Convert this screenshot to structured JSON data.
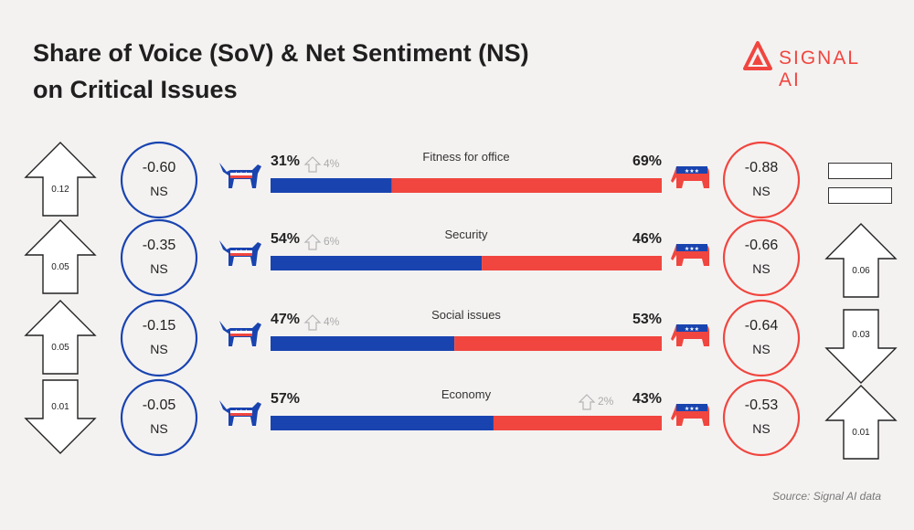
{
  "title_line1": "Share of Voice (SoV) & Net Sentiment (NS)",
  "title_line2": "on Critical Issues",
  "brand": "SIGNAL AI",
  "source": "Source: Signal AI data",
  "colors": {
    "democrat": "#1944b0",
    "republican": "#f0463f",
    "text": "#1e1e1e"
  },
  "legend": {
    "boxes": 2
  },
  "chart_data": {
    "type": "bar",
    "stacked": true,
    "orientation": "horizontal",
    "xlim": [
      0,
      100
    ],
    "categories": [
      "Fitness for office",
      "Security",
      "Social issues",
      "Economy"
    ],
    "series": [
      {
        "values": [
          31,
          54,
          47,
          57
        ]
      },
      {
        "values": [
          69,
          46,
          53,
          43
        ]
      }
    ],
    "rows": [
      {
        "label": "Fitness for office",
        "dem_pct": "31%",
        "rep_pct": "69%",
        "change": "4%",
        "change_side": "dem",
        "dem_ns": "-0.60",
        "rep_ns": "-0.88",
        "dem_arrow": {
          "dir": "up",
          "value": "0.12"
        },
        "rep_arrow": null
      },
      {
        "label": "Security",
        "dem_pct": "54%",
        "rep_pct": "46%",
        "change": "6%",
        "change_side": "dem",
        "dem_ns": "-0.35",
        "rep_ns": "-0.66",
        "dem_arrow": {
          "dir": "up",
          "value": "0.05"
        },
        "rep_arrow": {
          "dir": "up",
          "value": "0.06"
        }
      },
      {
        "label": "Social issues",
        "dem_pct": "47%",
        "rep_pct": "53%",
        "change": "4%",
        "change_side": "dem",
        "dem_ns": "-0.15",
        "rep_ns": "-0.64",
        "dem_arrow": {
          "dir": "up",
          "value": "0.05"
        },
        "rep_arrow": {
          "dir": "down",
          "value": "0.03"
        }
      },
      {
        "label": "Economy",
        "dem_pct": "57%",
        "rep_pct": "43%",
        "change": "2%",
        "change_side": "rep",
        "dem_ns": "-0.05",
        "rep_ns": "-0.53",
        "dem_arrow": {
          "dir": "down",
          "value": "0.01"
        },
        "rep_arrow": {
          "dir": "up",
          "value": "0.01"
        }
      }
    ],
    "ns_label": "NS",
    "dem_icon": "donkey-icon",
    "rep_icon": "elephant-icon",
    "change_icon": "up-arrow-outline-icon"
  }
}
